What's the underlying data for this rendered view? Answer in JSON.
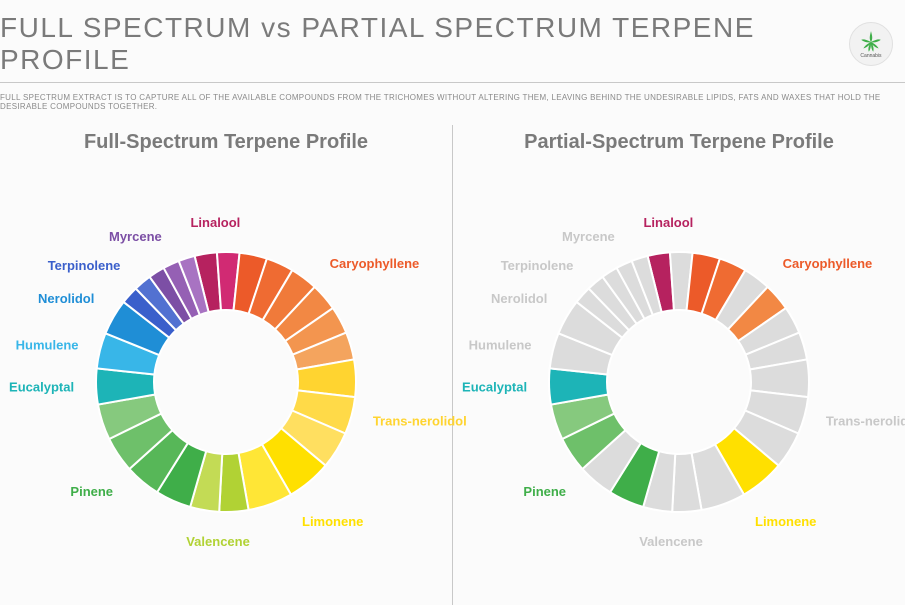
{
  "header": {
    "title": "FULL SPECTRUM vs PARTIAL SPECTRUM TERPENE PROFILE",
    "subtitle": "FULL SPECTRUM EXTRACT IS TO CAPTURE ALL OF THE AVAILABLE COMPOUNDS FROM THE TRICHOMES WITHOUT ALTERING THEM, LEAVING BEHIND THE UNDESIRABLE LIPIDS, FATS AND WAXES THAT HOLD THE DESIRABLE COMPOUNDS TOGETHER.",
    "logo_label": "Cannabis"
  },
  "chart_geometry": {
    "outer_radius": 130,
    "inner_radius": 72,
    "gap_color": "#ffffff",
    "gap_width": 2,
    "label_radius": 152
  },
  "segments": [
    {
      "key": "linalool",
      "label": "Linalool",
      "angle_start": -14,
      "angle_end": 6,
      "slices": [
        {
          "w": 1,
          "c": "#b6225f"
        },
        {
          "w": 1,
          "c": "#d12a73"
        }
      ]
    },
    {
      "key": "caryophyllene",
      "label": "Caryophyllene",
      "angle_start": 6,
      "angle_end": 80,
      "slices": [
        {
          "w": 1,
          "c": "#ec5a29"
        },
        {
          "w": 1,
          "c": "#ef6b32"
        },
        {
          "w": 1,
          "c": "#f07a3a"
        },
        {
          "w": 1,
          "c": "#f28844"
        },
        {
          "w": 1,
          "c": "#f3954f"
        },
        {
          "w": 1,
          "c": "#f4a45e"
        }
      ]
    },
    {
      "key": "trans_nerolidol",
      "label": "Trans-nerolidol",
      "angle_start": 80,
      "angle_end": 130,
      "slices": [
        {
          "w": 1,
          "c": "#ffd430"
        },
        {
          "w": 1,
          "c": "#ffda48"
        },
        {
          "w": 1,
          "c": "#ffdf60"
        }
      ]
    },
    {
      "key": "limonene",
      "label": "Limonene",
      "angle_start": 130,
      "angle_end": 170,
      "slices": [
        {
          "w": 1,
          "c": "#ffe000"
        },
        {
          "w": 1,
          "c": "#ffe636"
        }
      ]
    },
    {
      "key": "valencene",
      "label": "Valencene",
      "angle_start": 170,
      "angle_end": 196,
      "slices": [
        {
          "w": 1,
          "c": "#b1d234"
        },
        {
          "w": 1,
          "c": "#c3db55"
        }
      ]
    },
    {
      "key": "pinene",
      "label": "Pinene",
      "angle_start": 196,
      "angle_end": 260,
      "slices": [
        {
          "w": 1,
          "c": "#3fae49"
        },
        {
          "w": 1,
          "c": "#57b758"
        },
        {
          "w": 1,
          "c": "#6ec06a"
        },
        {
          "w": 1,
          "c": "#86c97e"
        }
      ]
    },
    {
      "key": "eucalyptal",
      "label": "Eucalyptal",
      "angle_start": 260,
      "angle_end": 276,
      "slices": [
        {
          "w": 1,
          "c": "#1db4b7"
        }
      ]
    },
    {
      "key": "humulene",
      "label": "Humulene",
      "angle_start": 276,
      "angle_end": 292,
      "slices": [
        {
          "w": 1,
          "c": "#38b6e8"
        }
      ]
    },
    {
      "key": "nerolidol",
      "label": "Nerolidol",
      "angle_start": 292,
      "angle_end": 308,
      "slices": [
        {
          "w": 1,
          "c": "#1f8ed6"
        }
      ]
    },
    {
      "key": "terpinolene",
      "label": "Terpinolene",
      "angle_start": 308,
      "angle_end": 324,
      "slices": [
        {
          "w": 1,
          "c": "#3a5fcb"
        },
        {
          "w": 1,
          "c": "#5271d1"
        }
      ]
    },
    {
      "key": "myrcene",
      "label": "Myrcene",
      "angle_start": 324,
      "angle_end": 346,
      "slices": [
        {
          "w": 1,
          "c": "#7c4fa5"
        },
        {
          "w": 1,
          "c": "#9560b4"
        },
        {
          "w": 1,
          "c": "#a873c2"
        }
      ]
    }
  ],
  "charts": [
    {
      "id": "full",
      "title": "Full-Spectrum Terpene Profile",
      "grey_inactive": "#d0d0d0",
      "label_inactive_color": "#bdbdbd",
      "overrides": {}
    },
    {
      "id": "partial",
      "title": "Partial-Spectrum Terpene Profile",
      "grey_inactive": "#dcdcdc",
      "label_inactive_color": "#c8c8c8",
      "overrides": {
        "linalool": {
          "active_slices": [
            0
          ]
        },
        "caryophyllene": {
          "active_slices": [
            0,
            1,
            3
          ]
        },
        "trans_nerolidol": {
          "active_slices": []
        },
        "limonene": {
          "active_slices": [
            0
          ]
        },
        "valencene": {
          "active_slices": []
        },
        "pinene": {
          "active_slices": [
            0,
            2,
            3
          ]
        },
        "eucalyptal": {
          "active_slices": [
            0
          ]
        },
        "humulene": {
          "active_slices": []
        },
        "nerolidol": {
          "active_slices": []
        },
        "terpinolene": {
          "active_slices": []
        },
        "myrcene": {
          "active_slices": []
        }
      }
    }
  ],
  "label_colors": {
    "linalool": "#b6225f",
    "caryophyllene": "#ec5a29",
    "trans_nerolidol": "#ffd430",
    "limonene": "#ffe000",
    "valencene": "#b1d234",
    "pinene": "#3fae49",
    "eucalyptal": "#1db4b7",
    "humulene": "#38b6e8",
    "nerolidol": "#1f8ed6",
    "terpinolene": "#3a5fcb",
    "myrcene": "#7c4fa5"
  }
}
